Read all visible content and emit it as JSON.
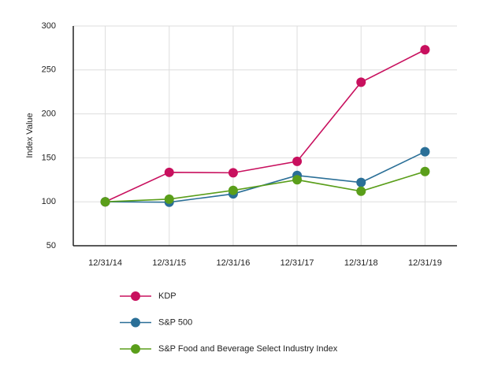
{
  "chart_data": {
    "type": "line",
    "y_label": "Index Value",
    "categories": [
      "12/31/14",
      "12/31/15",
      "12/31/16",
      "12/31/17",
      "12/31/18",
      "12/31/19"
    ],
    "series": [
      {
        "name": "KDP",
        "color": "#c8105e",
        "values": [
          100,
          133.5,
          133,
          146,
          236,
          273
        ]
      },
      {
        "name": "S&P 500",
        "color": "#2a6f97",
        "values": [
          100,
          99.5,
          109,
          130,
          122,
          157
        ]
      },
      {
        "name": "S&P Food and Beverage Select Industry Index",
        "color": "#5a9e1a",
        "values": [
          100,
          103,
          113,
          125,
          112,
          134.5
        ]
      }
    ],
    "ylim": [
      50,
      300
    ],
    "yticks": [
      50,
      100,
      150,
      200,
      250,
      300
    ],
    "grid": true
  }
}
